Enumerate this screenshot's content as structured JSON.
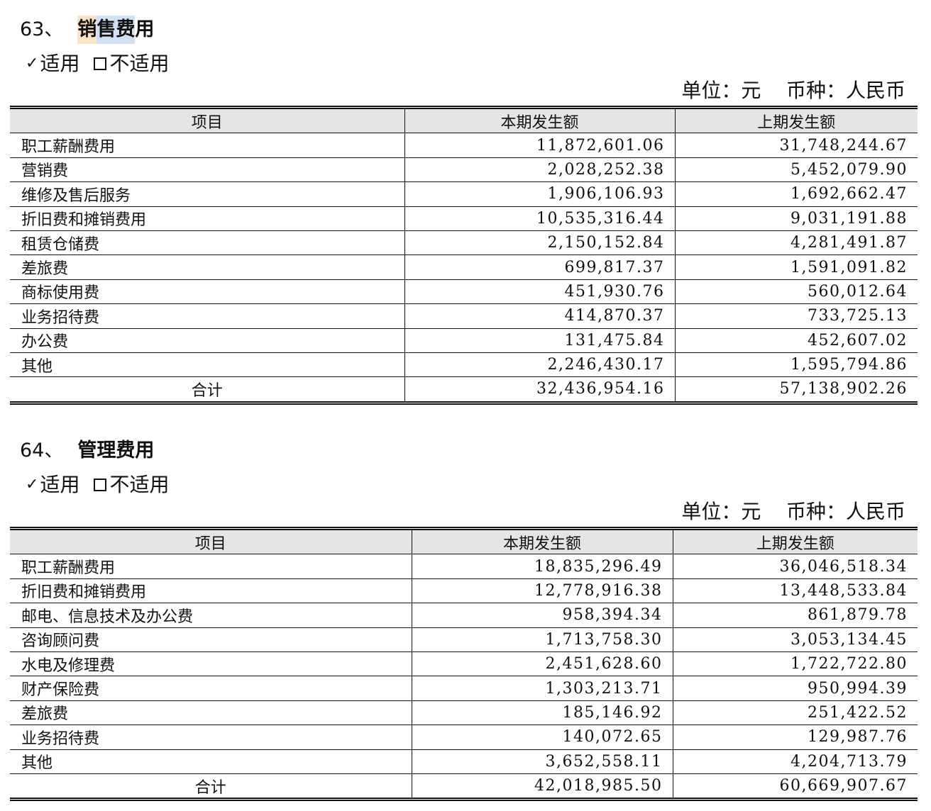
{
  "unit_line": "单位：元    币种：人民币",
  "applicable": {
    "applies": "适用",
    "not_applies": "不适用"
  },
  "sections": [
    {
      "number": "63、",
      "title_parts": [
        "销",
        "售费",
        "用"
      ],
      "columns": [
        "项目",
        "本期发生额",
        "上期发生额"
      ],
      "rows": [
        {
          "item": "职工薪酬费用",
          "current": "11,872,601.06",
          "previous": "31,748,244.67"
        },
        {
          "item": "营销费",
          "current": "2,028,252.38",
          "previous": "5,452,079.90"
        },
        {
          "item": "维修及售后服务",
          "current": "1,906,106.93",
          "previous": "1,692,662.47"
        },
        {
          "item": "折旧费和摊销费用",
          "current": "10,535,316.44",
          "previous": "9,031,191.88"
        },
        {
          "item": "租赁仓储费",
          "current": "2,150,152.84",
          "previous": "4,281,491.87"
        },
        {
          "item": "差旅费",
          "current": "699,817.37",
          "previous": "1,591,091.82"
        },
        {
          "item": "商标使用费",
          "current": "451,930.76",
          "previous": "560,012.64"
        },
        {
          "item": "业务招待费",
          "current": "414,870.37",
          "previous": "733,725.13"
        },
        {
          "item": "办公费",
          "current": "131,475.84",
          "previous": "452,607.02"
        },
        {
          "item": "其他",
          "current": "2,246,430.17",
          "previous": "1,595,794.86"
        }
      ],
      "total": {
        "label": "合计",
        "current": "32,436,954.16",
        "previous": "57,138,902.26"
      }
    },
    {
      "number": "64、",
      "title": "管理费用",
      "columns": [
        "项目",
        "本期发生额",
        "上期发生额"
      ],
      "rows": [
        {
          "item": "职工薪酬费用",
          "current": "18,835,296.49",
          "previous": "36,046,518.34"
        },
        {
          "item": "折旧费和摊销费用",
          "current": "12,778,916.38",
          "previous": "13,448,533.84"
        },
        {
          "item": "邮电、信息技术及办公费",
          "current": "958,394.34",
          "previous": "861,879.78"
        },
        {
          "item": "咨询顾问费",
          "current": "1,713,758.30",
          "previous": "3,053,134.45"
        },
        {
          "item": "水电及修理费",
          "current": "2,451,628.60",
          "previous": "1,722,722.80"
        },
        {
          "item": "财产保险费",
          "current": "1,303,213.71",
          "previous": "950,994.39"
        },
        {
          "item": "差旅费",
          "current": "185,146.92",
          "previous": "251,422.52"
        },
        {
          "item": "业务招待费",
          "current": "140,072.65",
          "previous": "129,987.76"
        },
        {
          "item": "其他",
          "current": "3,652,558.11",
          "previous": "4,204,713.79"
        }
      ],
      "total": {
        "label": "合计",
        "current": "42,018,985.50",
        "previous": "60,669,907.67"
      }
    }
  ]
}
